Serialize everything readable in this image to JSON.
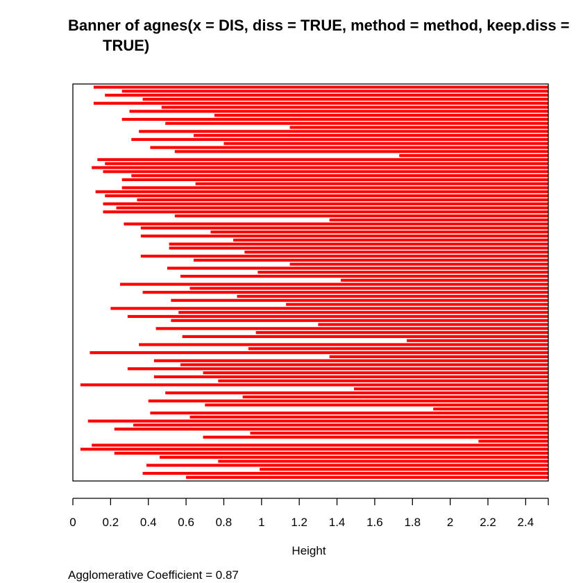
{
  "chart_data": {
    "type": "bar",
    "orientation": "horizontal",
    "title_line1": "Banner of  agnes(x = DIS, diss = TRUE, method = method, keep.diss = ",
    "title_line2": "TRUE)",
    "xlabel": "Height",
    "ylabel": "",
    "xlim": [
      0,
      2.52
    ],
    "ticks": [
      0,
      0.2,
      0.4,
      0.6,
      0.8,
      1,
      1.2,
      1.4,
      1.6,
      1.8,
      2,
      2.2,
      2.4
    ],
    "tick_labels": [
      "0",
      "0.2",
      "0.4",
      "0.6",
      "0.8",
      "1",
      "1.2",
      "1.4",
      "1.6",
      "1.8",
      "2",
      "2.2",
      "2.4"
    ],
    "footer": "Agglomerative Coefficient =  0.87",
    "bar_color": "#ff0000",
    "values": [
      0.11,
      0.26,
      0.17,
      0.37,
      0.11,
      0.47,
      0.3,
      0.75,
      0.26,
      0.49,
      1.15,
      0.35,
      0.64,
      0.31,
      0.8,
      0.41,
      0.54,
      1.73,
      0.13,
      0.17,
      0.1,
      0.16,
      0.31,
      0.26,
      0.65,
      0.26,
      0.12,
      0.17,
      0.34,
      0.16,
      0.23,
      0.16,
      0.54,
      1.36,
      0.27,
      0.36,
      0.73,
      0.36,
      0.85,
      0.51,
      0.51,
      0.91,
      0.36,
      0.64,
      1.15,
      0.5,
      0.98,
      0.57,
      1.42,
      0.25,
      0.62,
      0.37,
      0.87,
      0.52,
      1.13,
      0.2,
      0.56,
      0.29,
      0.52,
      1.3,
      0.44,
      0.97,
      0.58,
      1.77,
      0.35,
      0.93,
      0.09,
      1.36,
      0.43,
      0.57,
      0.29,
      0.69,
      0.43,
      0.77,
      0.04,
      1.49,
      0.49,
      0.9,
      0.4,
      0.7,
      1.91,
      0.41,
      0.62,
      0.08,
      0.32,
      0.22,
      0.94,
      0.69,
      2.15,
      0.1,
      0.04,
      0.22,
      0.46,
      0.77,
      0.39,
      0.99,
      0.37,
      0.6
    ]
  }
}
